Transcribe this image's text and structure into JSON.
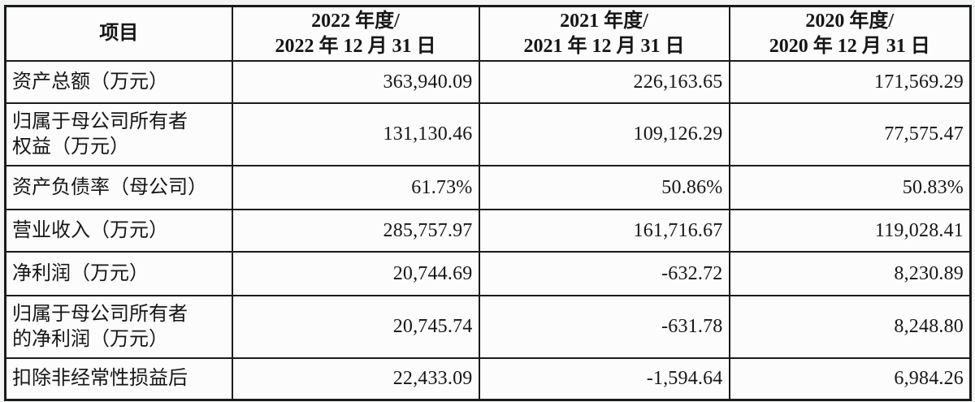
{
  "table": {
    "header": {
      "item_label": "项目",
      "periods": [
        "2022 年度/\n2022 年 12 月 31 日",
        "2021 年度/\n2021 年 12 月 31 日",
        "2020 年度/\n2020 年 12 月 31 日"
      ]
    },
    "rows": [
      {
        "label": "资产总额（万元）",
        "values": [
          "363,940.09",
          "226,163.65",
          "171,569.29"
        ]
      },
      {
        "label": "归属于母公司所有者\n权益（万元）",
        "values": [
          "131,130.46",
          "109,126.29",
          "77,575.47"
        ]
      },
      {
        "label": "资产负债率（母公司）",
        "values": [
          "61.73%",
          "50.86%",
          "50.83%"
        ]
      },
      {
        "label": "营业收入（万元）",
        "values": [
          "285,757.97",
          "161,716.67",
          "119,028.41"
        ]
      },
      {
        "label": "净利润（万元）",
        "values": [
          "20,744.69",
          "-632.72",
          "8,230.89"
        ]
      },
      {
        "label": "归属于母公司所有者\n的净利润（万元）",
        "values": [
          "20,745.74",
          "-631.78",
          "8,248.80"
        ]
      },
      {
        "label": "扣除非经常性损益后",
        "values": [
          "22,433.09",
          "-1,594.64",
          "6,984.26"
        ]
      }
    ],
    "colors": {
      "border": "#1b1b1b",
      "cell_background": "#fbfcfb",
      "page_background": "#f3f5f4",
      "text": "#151515"
    }
  }
}
